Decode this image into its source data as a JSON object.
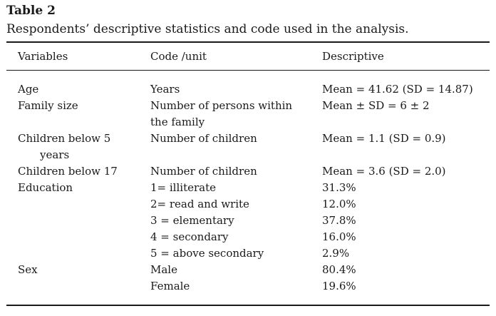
{
  "table": {
    "label": "Table 2",
    "caption": "Respondents’ descriptive statistics and code used in the analysis.",
    "headers": {
      "variables": "Variables",
      "code": "Code /unit",
      "descriptive": "Descriptive"
    },
    "rows": [
      {
        "variable": "Age",
        "code": "Years",
        "descriptive": "Mean = 41.62 (SD = 14.87)"
      },
      {
        "variable": "Family size",
        "code_line1": "Number of persons within",
        "code_line2": "the family",
        "descriptive": "Mean ± SD = 6 ± 2"
      },
      {
        "variable_line1": "Children below 5",
        "variable_line2": "years",
        "code": "Number of children",
        "descriptive": "Mean = 1.1 (SD = 0.9)"
      },
      {
        "variable": "Children below 17",
        "code": "Number of children",
        "descriptive": "Mean = 3.6 (SD = 2.0)"
      },
      {
        "variable": "Education",
        "code": "1= illiterate",
        "descriptive": "31.3%"
      },
      {
        "variable": "",
        "code": "2= read and write",
        "descriptive": "12.0%"
      },
      {
        "variable": "",
        "code": "3 = elementary",
        "descriptive": "37.8%"
      },
      {
        "variable": "",
        "code": "4 = secondary",
        "descriptive": "16.0%"
      },
      {
        "variable": "",
        "code": "5 = above secondary",
        "descriptive": "2.9%"
      },
      {
        "variable": "Sex",
        "code": "Male",
        "descriptive": "80.4%"
      },
      {
        "variable": "",
        "code": "Female",
        "descriptive": "19.6%"
      }
    ]
  }
}
